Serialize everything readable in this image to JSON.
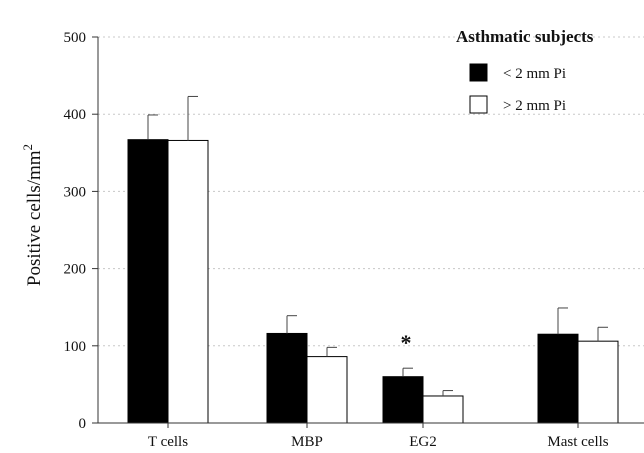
{
  "chart_data": {
    "type": "bar",
    "categories": [
      "T cells",
      "MBP",
      "EG2",
      "Mast cells"
    ],
    "ylabel": "Positive cells/mm",
    "ylabel_superscript": "2",
    "ylim": [
      0,
      500
    ],
    "yticks": [
      0,
      100,
      200,
      300,
      400,
      500
    ],
    "grid": "horizontal dotted",
    "legend": {
      "title": "Asthmatic subjects",
      "placement": "top-right"
    },
    "series": [
      {
        "name": "< 2 mm Pi",
        "color": "#000000",
        "values": [
          367,
          116,
          60,
          115
        ],
        "error_upper": [
          399,
          139,
          71,
          149
        ]
      },
      {
        "name": "> 2 mm Pi",
        "color": "#ffffff",
        "values": [
          366,
          86,
          35,
          106
        ],
        "error_upper": [
          423,
          98,
          42,
          124
        ]
      }
    ],
    "annotations": [
      {
        "text": "*",
        "category": "EG2",
        "series": "< 2 mm Pi"
      }
    ]
  }
}
